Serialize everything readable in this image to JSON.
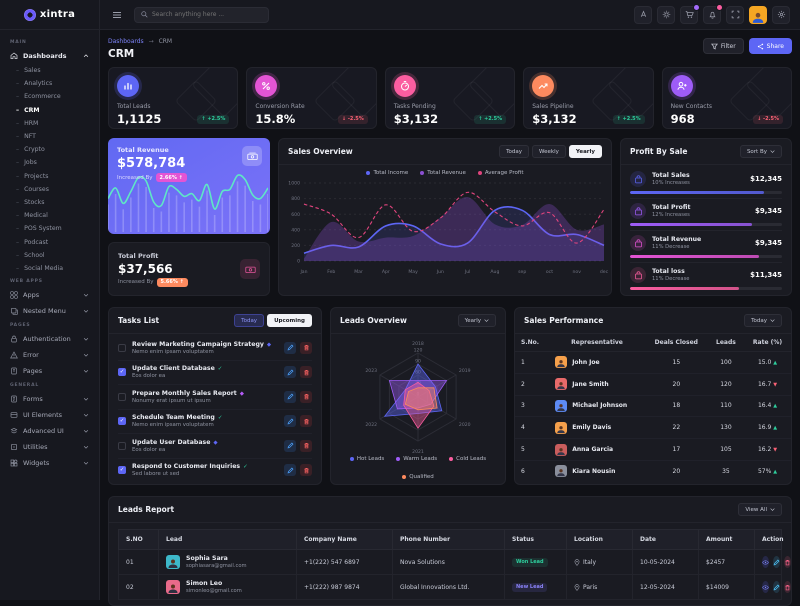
{
  "app": {
    "brand": "xintra",
    "search_placeholder": "Search anything here ..."
  },
  "colors": {
    "primary": "#5d66f5",
    "purple": "#9e5cf7",
    "magenta": "#e354d4",
    "pink": "#fb5da0",
    "orange": "#fd8a5f",
    "green": "#2ece9d",
    "red": "#fb6275",
    "teal_line": "#5fe7c6"
  },
  "breadcrumb": {
    "parent": "Dashboards",
    "current": "CRM"
  },
  "page": {
    "title": "CRM",
    "filter_label": "Filter",
    "share_label": "Share"
  },
  "sidebar": {
    "sections": [
      {
        "label": "MAIN",
        "items": [
          {
            "label": "Dashboards",
            "icon": "home-icon",
            "expanded": true,
            "children": [
              "Sales",
              "Analytics",
              "Ecommerce",
              "CRM",
              "HRM",
              "NFT",
              "Crypto",
              "Jobs",
              "Projects",
              "Courses",
              "Stocks",
              "Medical",
              "POS System",
              "Podcast",
              "School",
              "Social Media"
            ],
            "active_child": "CRM"
          }
        ]
      },
      {
        "label": "WEB APPS",
        "items": [
          {
            "label": "Apps",
            "icon": "apps-icon"
          },
          {
            "label": "Nested Menu",
            "icon": "nested-menu-icon"
          }
        ]
      },
      {
        "label": "PAGES",
        "items": [
          {
            "label": "Authentication",
            "icon": "lock-icon"
          },
          {
            "label": "Error",
            "icon": "warning-icon"
          },
          {
            "label": "Pages",
            "icon": "pages-icon"
          }
        ]
      },
      {
        "label": "GENERAL",
        "items": [
          {
            "label": "Forms",
            "icon": "form-icon"
          },
          {
            "label": "UI Elements",
            "icon": "ui-elements-icon"
          },
          {
            "label": "Advanced UI",
            "icon": "advanced-ui-icon"
          },
          {
            "label": "Utilities",
            "icon": "utilities-icon"
          },
          {
            "label": "Widgets",
            "icon": "widgets-icon"
          }
        ]
      }
    ]
  },
  "stats": [
    {
      "label": "Total Leads",
      "value": "1,1125",
      "delta": "+2.5%",
      "trend": "up",
      "icon": "bar-chart-icon",
      "color": "#5d66f5"
    },
    {
      "label": "Conversion Rate",
      "value": "15.8%",
      "delta": "-2.5%",
      "trend": "down",
      "icon": "percent-icon",
      "color": "#e354d4"
    },
    {
      "label": "Tasks Pending",
      "value": "$3,132",
      "delta": "+2.5%",
      "trend": "up",
      "icon": "timer-icon",
      "color": "#fb5da0"
    },
    {
      "label": "Sales Pipeline",
      "value": "$3,132",
      "delta": "+2.5%",
      "trend": "up",
      "icon": "trend-up-icon",
      "color": "#fd8a5f"
    },
    {
      "label": "New Contacts",
      "value": "968",
      "delta": "-2.5%",
      "trend": "down",
      "icon": "person-add-icon",
      "color": "#9e5cf7"
    }
  ],
  "revenue_card": {
    "label": "Total Revenue",
    "value": "$578,784",
    "increase_label": "Increased By",
    "badge": "2.66% ↑"
  },
  "profit_card": {
    "label": "Total Profit",
    "value": "$37,566",
    "increase_label": "Increased By",
    "badge": "5.66% ↑"
  },
  "sales_overview": {
    "title": "Sales Overview",
    "tabs": [
      "Today",
      "Weekly",
      "Yearly"
    ],
    "active_tab": "Yearly"
  },
  "profit_by_sale": {
    "title": "Profit By Sale",
    "sort_label": "Sort By",
    "items": [
      {
        "name": "Total Sales",
        "sub": "10% Increases",
        "amount": "$12,345",
        "color": "#5d66f5",
        "progress": 88
      },
      {
        "name": "Total Profit",
        "sub": "12% Increases",
        "amount": "$9,345",
        "color": "#9e5cf7",
        "progress": 80
      },
      {
        "name": "Total Revenue",
        "sub": "11% Decrease",
        "amount": "$9,345",
        "color": "#e354d4",
        "progress": 85
      },
      {
        "name": "Total loss",
        "sub": "11% Decrease",
        "amount": "$11,345",
        "color": "#fb5da0",
        "progress": 72
      }
    ]
  },
  "tasks": {
    "title": "Tasks List",
    "buttons": [
      "Today",
      "Upcoming"
    ],
    "active_button": "Today",
    "items": [
      {
        "title": "Review Marketing Campaign Strategy",
        "sub": "Nemo enim ipsam voluptatem",
        "checked": false,
        "tag_color": "#5d66f5"
      },
      {
        "title": "Update Client Database",
        "sub": "Eos dolor ea",
        "checked": true,
        "tag_color": "#2ece9d"
      },
      {
        "title": "Prepare Monthly Sales Report",
        "sub": "Nonumy erat ipsum ut ipsum",
        "checked": false,
        "tag_color": "#b45cf7"
      },
      {
        "title": "Schedule Team Meeting",
        "sub": "Nemo enim ipsam voluptatem",
        "checked": true,
        "tag_color": "#2ece9d"
      },
      {
        "title": "Update User Database",
        "sub": "Eos dolor ea",
        "checked": false,
        "tag_color": "#5d66f5"
      },
      {
        "title": "Respond to Customer Inquiries",
        "sub": "Sed labore ut sed",
        "checked": true,
        "tag_color": "#2ece9d"
      }
    ]
  },
  "leads_overview": {
    "title": "Leads Overview",
    "dropdown": "Yearly"
  },
  "sales_performance": {
    "title": "Sales Performance",
    "dropdown": "Today",
    "columns": [
      "S.No.",
      "Representative",
      "Deals Closed",
      "Leads",
      "Rate (%)"
    ],
    "rows": [
      {
        "sno": "1",
        "name": "John Joe",
        "avatar_color": "#f5a04b",
        "deals": "15",
        "leads": "100",
        "rate": "15.0",
        "trend": "up"
      },
      {
        "sno": "2",
        "name": "Jane Smith",
        "avatar_color": "#e86a6a",
        "deals": "20",
        "leads": "120",
        "rate": "16.7",
        "trend": "down"
      },
      {
        "sno": "3",
        "name": "Michael Johnson",
        "avatar_color": "#5d8bf5",
        "deals": "18",
        "leads": "110",
        "rate": "16.4",
        "trend": "up"
      },
      {
        "sno": "4",
        "name": "Emily Davis",
        "avatar_color": "#f5a04b",
        "deals": "22",
        "leads": "130",
        "rate": "16.9",
        "trend": "up"
      },
      {
        "sno": "5",
        "name": "Anna Garcia",
        "avatar_color": "#c95d5d",
        "deals": "17",
        "leads": "105",
        "rate": "16.2",
        "trend": "down"
      },
      {
        "sno": "6",
        "name": "Kiara Nousin",
        "avatar_color": "#8a8f9c",
        "deals": "20",
        "leads": "35",
        "rate": "57%",
        "trend": "up"
      }
    ]
  },
  "leads_report": {
    "title": "Leads Report",
    "dropdown": "View All",
    "columns": [
      "S.NO",
      "Lead",
      "Company Name",
      "Phone Number",
      "Status",
      "Location",
      "Date",
      "Amount",
      "Action"
    ],
    "rows": [
      {
        "sno": "01",
        "name": "Sophia Sara",
        "email": "sophiasara@gmail.com",
        "avatar_color": "#3db8c9",
        "company": "Nova Solutions",
        "phone": "+1(222) 547 6897",
        "status": "Won Lead",
        "status_type": "won",
        "location": "Italy",
        "date": "10-05-2024",
        "amount": "$2457"
      },
      {
        "sno": "02",
        "name": "Simon Leo",
        "email": "simonleo@gmail.com",
        "avatar_color": "#e86a8a",
        "company": "Global Innovations Ltd.",
        "phone": "+1(222) 987 9874",
        "status": "New Lead",
        "status_type": "new",
        "location": "Paris",
        "date": "12-05-2024",
        "amount": "$14009"
      }
    ]
  },
  "chart_data": [
    {
      "id": "sales_overview_chart",
      "type": "line",
      "title": "Sales Overview",
      "categories": [
        "Jan",
        "Feb",
        "Mar",
        "Apr",
        "May",
        "Jun",
        "Jul",
        "Aug",
        "sep",
        "oct",
        "nov",
        "dec"
      ],
      "ylim": [
        0,
        1000
      ],
      "yticks": [
        0,
        200,
        400,
        600,
        800,
        1000
      ],
      "grid": true,
      "legend_position": "top",
      "series": [
        {
          "name": "Total Income",
          "color": "#5d66f5",
          "style": "solid-area",
          "values": [
            100,
            200,
            180,
            450,
            450,
            220,
            230,
            650,
            650,
            340,
            340,
            200
          ]
        },
        {
          "name": "Total Revenue",
          "color": "#8a4fd0",
          "style": "area",
          "values": [
            30,
            500,
            250,
            300,
            320,
            560,
            820,
            470,
            460,
            730,
            400,
            470
          ]
        },
        {
          "name": "Average Profit",
          "color": "#e0447d",
          "style": "dashed",
          "values": [
            730,
            600,
            300,
            720,
            380,
            550,
            880,
            630,
            450,
            620,
            230,
            660
          ]
        }
      ]
    },
    {
      "id": "leads_overview_radar",
      "type": "radar",
      "categories": [
        "2018",
        "2019",
        "2020",
        "2021",
        "2022",
        "2023"
      ],
      "rlim": [
        0,
        120
      ],
      "rticks": [
        0,
        30,
        60,
        90,
        120
      ],
      "legend_position": "bottom",
      "series": [
        {
          "name": "Hot Leads",
          "color": "#5d66f5",
          "values": [
            90,
            55,
            75,
            45,
            105,
            40
          ]
        },
        {
          "name": "Warm Leads",
          "color": "#9e5cf7",
          "values": [
            45,
            90,
            40,
            30,
            65,
            90
          ]
        },
        {
          "name": "Cold Leads",
          "color": "#fb5da0",
          "values": [
            40,
            35,
            50,
            85,
            45,
            40
          ]
        },
        {
          "name": "Qualified",
          "color": "#fd8a5f",
          "values": [
            25,
            50,
            60,
            35,
            40,
            30
          ]
        }
      ]
    },
    {
      "id": "revenue_sparkline",
      "type": "area",
      "title": "Total Revenue sparkline",
      "values": [
        45,
        60,
        38,
        55,
        75,
        70,
        40,
        35,
        62,
        58,
        48,
        52,
        42,
        65,
        30,
        55,
        58,
        78,
        72,
        50,
        45,
        60
      ]
    }
  ]
}
